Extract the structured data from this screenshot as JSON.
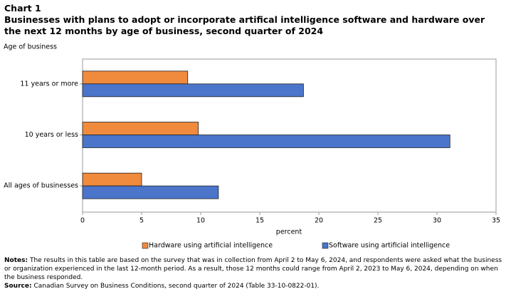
{
  "chart_data": {
    "type": "barh",
    "chart_label": "Chart 1",
    "title": "Businesses with plans to adopt or incorporate artifical intelligence software and hardware over the next 12 months by age of business, second quarter of 2024",
    "y_axis_title": "Age of business",
    "x_axis_title": "percent",
    "categories": [
      "11 years or more",
      "10 years or less",
      "All ages of businesses"
    ],
    "series": [
      {
        "name": "Hardware using artificial intelligence",
        "color": "#f08a3c",
        "values": [
          8.9,
          9.8,
          5.0
        ]
      },
      {
        "name": "Software using artificial intelligence",
        "color": "#4a75cb",
        "values": [
          18.7,
          31.1,
          11.5
        ]
      }
    ],
    "xlim": [
      0,
      35
    ],
    "xticks": [
      0,
      5,
      10,
      15,
      20,
      25,
      30,
      35
    ],
    "grid": false,
    "legend_position": "bottom",
    "notes_label": "Notes:",
    "notes": "The results in this table are based on the survey that was in collection from April 2 to May 6, 2024, and respondents were asked what the business or organization experienced in the last 12-month period. As a result, those 12 months could range from April 2, 2023 to May 6, 2024, depending on when the business responded.",
    "source_label": "Source:",
    "source": "Canadian Survey on Business Conditions, second quarter of 2024 (Table 33-10-0822-01)."
  }
}
